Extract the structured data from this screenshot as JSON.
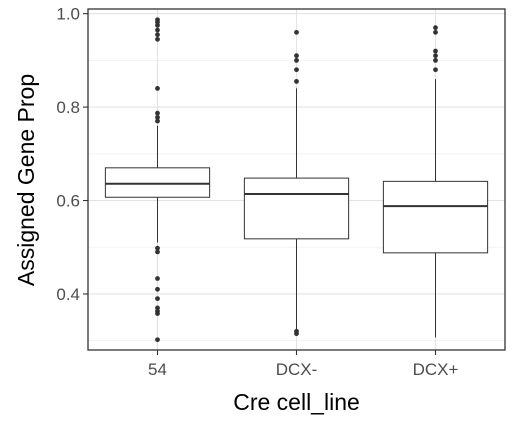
{
  "chart_data": {
    "type": "boxplot",
    "title": "",
    "xlabel": "Cre cell_line",
    "ylabel": "Assigned Gene Prop",
    "ylim": [
      0.28,
      1.01
    ],
    "yticks": [
      0.4,
      0.6,
      0.8,
      1.0
    ],
    "ytick_labels": [
      "0.4",
      "0.6",
      "0.8",
      "1.0"
    ],
    "grid": true,
    "legend": "none",
    "categories": [
      "54",
      "DCX-",
      "DCX+"
    ],
    "boxes": [
      {
        "category": "54",
        "whisker_low": 0.51,
        "q1": 0.607,
        "median": 0.636,
        "q3": 0.67,
        "whisker_high": 0.76,
        "outliers": [
          0.987,
          0.982,
          0.975,
          0.965,
          0.955,
          0.945,
          0.84,
          0.787,
          0.778,
          0.77,
          0.498,
          0.49,
          0.433,
          0.41,
          0.39,
          0.37,
          0.363,
          0.358,
          0.302
        ]
      },
      {
        "category": "DCX-",
        "whisker_low": 0.325,
        "q1": 0.518,
        "median": 0.614,
        "q3": 0.648,
        "whisker_high": 0.84,
        "outliers": [
          0.96,
          0.91,
          0.9,
          0.88,
          0.855,
          0.32,
          0.315
        ]
      },
      {
        "category": "DCX+",
        "whisker_low": 0.307,
        "q1": 0.488,
        "median": 0.588,
        "q3": 0.641,
        "whisker_high": 0.86,
        "outliers": [
          0.97,
          0.96,
          0.92,
          0.91,
          0.9,
          0.88
        ]
      }
    ]
  }
}
